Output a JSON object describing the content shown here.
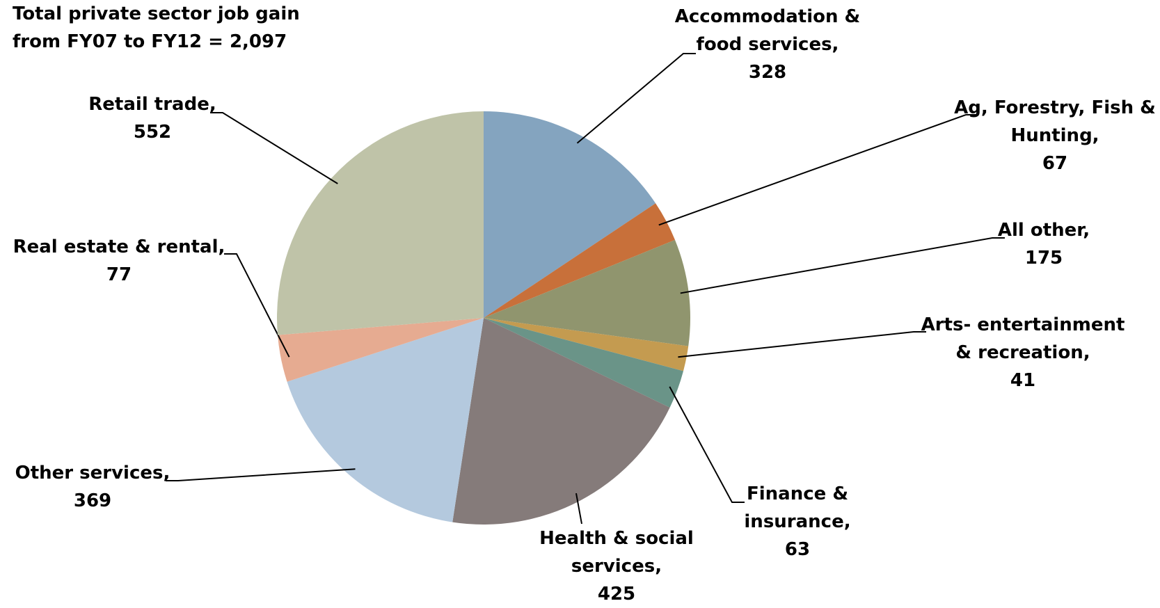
{
  "chart_data": {
    "type": "pie",
    "title": "Total private sector job gain from FY07 to FY12 = 2,097",
    "categories": [
      "Accommodation & food services,",
      "Ag, Forestry, Fish & Hunting,",
      "All other,",
      "Arts- entertainment & recreation,",
      "Finance & insurance,",
      "Health & social services,",
      "Other services,",
      "Real estate & rental,",
      "Retail trade,"
    ],
    "values": [
      328,
      67,
      175,
      41,
      63,
      425,
      369,
      77,
      552
    ],
    "colors": [
      "#84a4bf",
      "#c8703a",
      "#90956e",
      "#c49b50",
      "#6a9488",
      "#857b7a",
      "#b4c9de",
      "#e6ab91",
      "#bfc3a8"
    ]
  }
}
